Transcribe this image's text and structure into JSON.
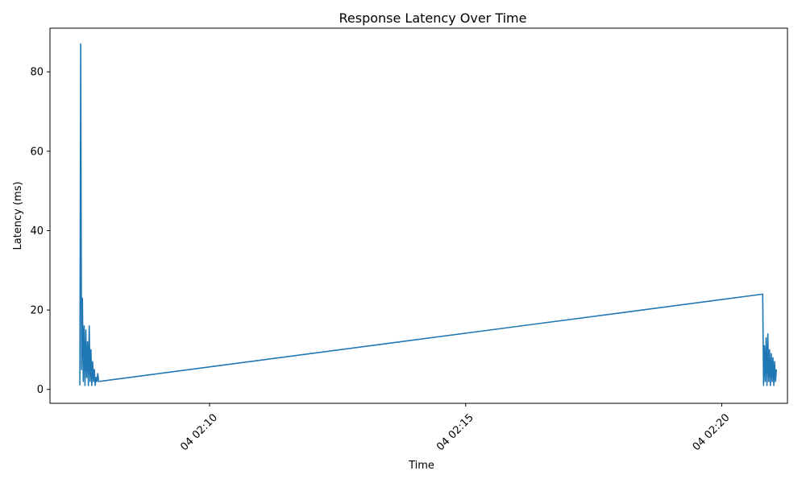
{
  "chart_data": {
    "type": "line",
    "title": "Response Latency Over Time",
    "xlabel": "Time",
    "ylabel": "Latency (ms)",
    "x_tick_labels": [
      "04 02:10",
      "04 02:15",
      "04 02:20"
    ],
    "y_tick_labels": [
      "0",
      "20",
      "40",
      "60",
      "80"
    ],
    "y_ticks": [
      0,
      20,
      40,
      60,
      80
    ],
    "x_ticks": [
      "02:10:00",
      "02:15:00",
      "02:20:00"
    ],
    "ylim": [
      -3.5,
      91
    ],
    "xlim": [
      "02:06:53",
      "02:21:17"
    ],
    "grid": false,
    "line_color": "#1f77b4",
    "series": [
      {
        "x": [
          "02:07:28",
          "02:07:29",
          "02:07:30",
          "02:07:31",
          "02:07:32",
          "02:07:33",
          "02:07:34",
          "02:07:35",
          "02:07:36",
          "02:07:37",
          "02:07:38",
          "02:07:39",
          "02:07:40",
          "02:07:41",
          "02:07:42",
          "02:07:43",
          "02:07:44",
          "02:07:45",
          "02:07:46",
          "02:07:47",
          "02:07:48",
          "02:07:49",
          "02:07:50",
          "02:20:48",
          "02:20:49",
          "02:20:50",
          "02:20:51",
          "02:20:52",
          "02:20:53",
          "02:20:54",
          "02:20:55",
          "02:20:56",
          "02:20:57",
          "02:20:58",
          "02:20:59",
          "02:21:00",
          "02:21:01",
          "02:21:02",
          "02:21:03",
          "02:21:04"
        ],
        "values": [
          1,
          87,
          5,
          23,
          2,
          16,
          1,
          15,
          3,
          12,
          1,
          16,
          2,
          10,
          1,
          7,
          2,
          5,
          1,
          3,
          2,
          4,
          2,
          24,
          1,
          11,
          2,
          13,
          1,
          14,
          2,
          10,
          1,
          9,
          2,
          8,
          1,
          7,
          2,
          5
        ]
      }
    ]
  }
}
